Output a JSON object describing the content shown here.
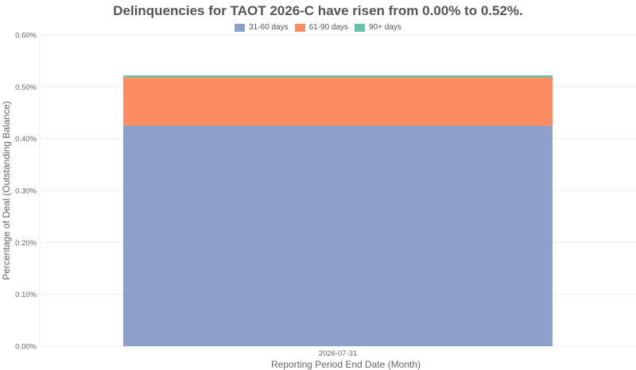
{
  "chart_data": {
    "type": "bar",
    "stacked": true,
    "title": "Delinquencies for TAOT 2026-C have risen from 0.00% to 0.52%.",
    "categories": [
      "2026-07-31"
    ],
    "series": [
      {
        "name": "31-60 days",
        "values": [
          0.425
        ],
        "color": "#8da0cb"
      },
      {
        "name": "61-90 days",
        "values": [
          0.093
        ],
        "color": "#fc8d62"
      },
      {
        "name": "90+ days",
        "values": [
          0.004
        ],
        "color": "#66c2a5"
      }
    ],
    "xlabel": "Reporting Period End Date (Month)",
    "ylabel": "Percentage of Deal (Outstanding Balance)",
    "ylim": [
      0,
      0.6
    ],
    "yticks": [
      "0.00%",
      "0.10%",
      "0.20%",
      "0.30%",
      "0.40%",
      "0.50%",
      "0.60%"
    ],
    "grid": true,
    "legend_position": "top-center"
  }
}
